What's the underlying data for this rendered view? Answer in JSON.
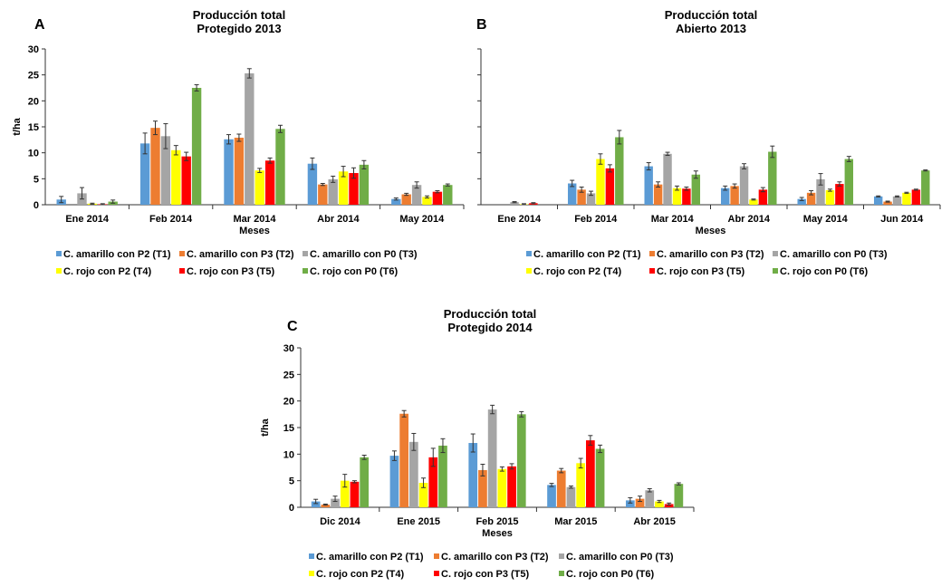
{
  "series_names": [
    "C. amarillo con P2 (T1)",
    "C. amarillo con P3 (T2)",
    "C. amarillo con P0 (T3)",
    "C. rojo con P2 (T4)",
    "C. rojo con P3 (T5)",
    "C. rojo con P0 (T6)"
  ],
  "colors": [
    "#5b9bd5",
    "#ed7d31",
    "#a5a5a5",
    "#ffff00",
    "#ff0000",
    "#70ad47"
  ],
  "chart_data": [
    {
      "panel": "A",
      "type": "bar",
      "title": "Producción total",
      "subtitle": "Protegido 2013",
      "xlabel": "Meses",
      "ylabel": "t/ha",
      "ylim": [
        0,
        30
      ],
      "yticks": [
        "0",
        "5",
        "10",
        "15",
        "20",
        "25",
        "30"
      ],
      "categories": [
        "Ene 2014",
        "Feb 2014",
        "Mar 2014",
        "Abr 2014",
        "May 2014"
      ],
      "series": [
        {
          "name": "C. amarillo con P2 (T1)",
          "values": [
            1.0,
            11.8,
            12.6,
            7.9,
            1.1
          ],
          "errors": [
            0.6,
            2.0,
            0.9,
            1.1,
            0.2
          ]
        },
        {
          "name": "C. amarillo con P3 (T2)",
          "values": [
            0.0,
            14.8,
            12.9,
            3.9,
            2.0
          ],
          "errors": [
            0.0,
            1.3,
            0.7,
            0.2,
            0.2
          ]
        },
        {
          "name": "C. amarillo con P0 (T3)",
          "values": [
            2.2,
            13.2,
            25.3,
            4.9,
            3.8
          ],
          "errors": [
            1.1,
            2.4,
            0.9,
            0.6,
            0.6
          ]
        },
        {
          "name": "C. rojo con P2 (T4)",
          "values": [
            0.2,
            10.5,
            6.6,
            6.4,
            1.5
          ],
          "errors": [
            0.1,
            0.9,
            0.4,
            1.0,
            0.2
          ]
        },
        {
          "name": "C. rojo con P3 (T5)",
          "values": [
            0.1,
            9.3,
            8.5,
            6.1,
            2.5
          ],
          "errors": [
            0.1,
            0.8,
            0.5,
            1.0,
            0.2
          ]
        },
        {
          "name": "C. rojo con P0 (T6)",
          "values": [
            0.6,
            22.5,
            14.6,
            7.7,
            3.8
          ],
          "errors": [
            0.3,
            0.6,
            0.7,
            0.8,
            0.2
          ]
        }
      ],
      "legend": "bottom"
    },
    {
      "panel": "B",
      "type": "bar",
      "title": "Producción total",
      "subtitle": "Abierto 2013",
      "xlabel": "Meses",
      "ylabel": "",
      "ylim": [
        0,
        30
      ],
      "yticks": [],
      "categories": [
        "Ene 2014",
        "Feb 2014",
        "Mar 2014",
        "Abr 2014",
        "May 2014",
        "Jun 2014"
      ],
      "series": [
        {
          "name": "C. amarillo con P2 (T1)",
          "values": [
            0.0,
            4.1,
            7.4,
            3.2,
            1.1,
            1.6
          ],
          "errors": [
            0.0,
            0.6,
            0.7,
            0.4,
            0.3,
            0.1
          ]
        },
        {
          "name": "C. amarillo con P3 (T2)",
          "values": [
            0.0,
            2.9,
            3.9,
            3.6,
            2.3,
            0.6
          ],
          "errors": [
            0.0,
            0.5,
            0.5,
            0.4,
            0.4,
            0.1
          ]
        },
        {
          "name": "C. amarillo con P0 (T3)",
          "values": [
            0.5,
            2.2,
            9.8,
            7.4,
            4.9,
            1.6
          ],
          "errors": [
            0.1,
            0.4,
            0.3,
            0.5,
            1.1,
            0.1
          ]
        },
        {
          "name": "C. rojo con P2 (T4)",
          "values": [
            0.1,
            8.8,
            3.2,
            1.0,
            2.8,
            2.3
          ],
          "errors": [
            0.1,
            1.0,
            0.4,
            0.1,
            0.2,
            0.1
          ]
        },
        {
          "name": "C. rojo con P3 (T5)",
          "values": [
            0.3,
            7.0,
            3.1,
            2.9,
            4.0,
            2.9
          ],
          "errors": [
            0.1,
            0.7,
            0.3,
            0.4,
            0.4,
            0.1
          ]
        },
        {
          "name": "C. rojo con P0 (T6)",
          "values": [
            0.0,
            13.0,
            5.8,
            10.2,
            8.8,
            6.6
          ],
          "errors": [
            0.0,
            1.3,
            0.7,
            1.1,
            0.5,
            0.1
          ]
        }
      ],
      "legend": "bottom"
    },
    {
      "panel": "C",
      "type": "bar",
      "title": "Producción total",
      "subtitle": "Protegido 2014",
      "xlabel": "Meses",
      "ylabel": "t/ha",
      "ylim": [
        0,
        30
      ],
      "yticks": [
        "0",
        "5",
        "10",
        "15",
        "20",
        "25",
        "30"
      ],
      "categories": [
        "Dic 2014",
        "Ene 2015",
        "Feb 2015",
        "Mar 2015",
        "Abr 2015"
      ],
      "series": [
        {
          "name": "C. amarillo con P2 (T1)",
          "values": [
            1.1,
            9.7,
            12.1,
            4.2,
            1.3
          ],
          "errors": [
            0.4,
            0.9,
            1.7,
            0.3,
            0.5
          ]
        },
        {
          "name": "C. amarillo con P3 (T2)",
          "values": [
            0.5,
            17.6,
            7.0,
            6.9,
            1.6
          ],
          "errors": [
            0.1,
            0.6,
            1.1,
            0.4,
            0.5
          ]
        },
        {
          "name": "C. amarillo con P0 (T3)",
          "values": [
            1.6,
            12.3,
            18.4,
            3.8,
            3.2
          ],
          "errors": [
            0.5,
            1.6,
            0.8,
            0.2,
            0.3
          ]
        },
        {
          "name": "C. rojo con P2 (T4)",
          "values": [
            5.0,
            4.6,
            7.2,
            8.3,
            1.1
          ],
          "errors": [
            1.2,
            0.9,
            0.4,
            0.9,
            0.2
          ]
        },
        {
          "name": "C. rojo con P3 (T5)",
          "values": [
            4.8,
            9.4,
            7.7,
            12.6,
            0.6
          ],
          "errors": [
            0.2,
            1.7,
            0.5,
            0.9,
            0.2
          ]
        },
        {
          "name": "C. rojo con P0 (T6)",
          "values": [
            9.4,
            11.6,
            17.5,
            11.0,
            4.4
          ],
          "errors": [
            0.4,
            1.3,
            0.5,
            0.7,
            0.2
          ]
        }
      ],
      "legend": "bottom"
    }
  ]
}
